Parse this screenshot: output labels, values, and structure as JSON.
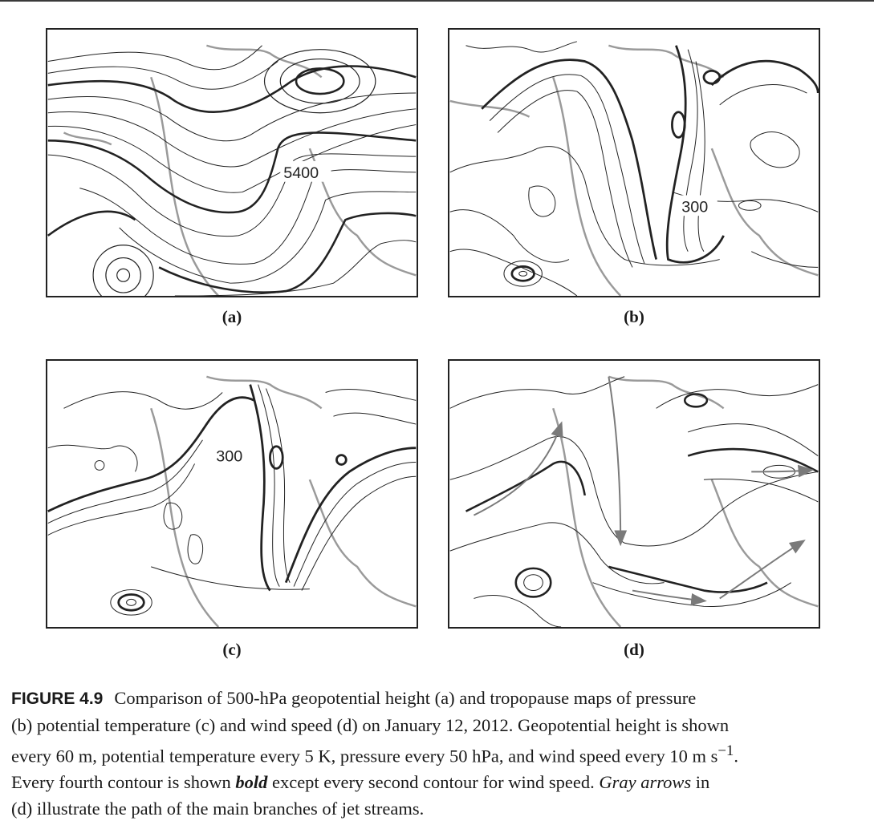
{
  "panels": [
    {
      "id": "a",
      "label": "(a)",
      "contour_label": "5400"
    },
    {
      "id": "b",
      "label": "(b)",
      "contour_label": "300"
    },
    {
      "id": "c",
      "label": "(c)",
      "contour_label": "300"
    },
    {
      "id": "d",
      "label": "(d)",
      "contour_label": ""
    }
  ],
  "caption": {
    "figure_label": "FIGURE 4.9",
    "line1": "Comparison of 500-hPa geopotential height (a) and tropopause maps of pressure",
    "line2": "(b) potential temperature (c) and wind speed (d) on January 12, 2012. Geopotential height is shown",
    "line3_pre": "every 60 m, potential temperature every 5 K, pressure every 50 hPa, and wind speed every 10 m s",
    "line3_sup": "−1",
    "line3_post": ".",
    "line4_pre": "Every fourth contour is shown ",
    "line4_bold": "bold",
    "line4_mid": " except every second contour for wind speed. ",
    "line4_italic": "Gray arrows",
    "line4_post": " in",
    "line5": "(d) illustrate the path of the main branches of jet streams."
  },
  "colors": {
    "contour": "#222222",
    "coastline": "#9a9a9a",
    "frame": "#222222"
  }
}
